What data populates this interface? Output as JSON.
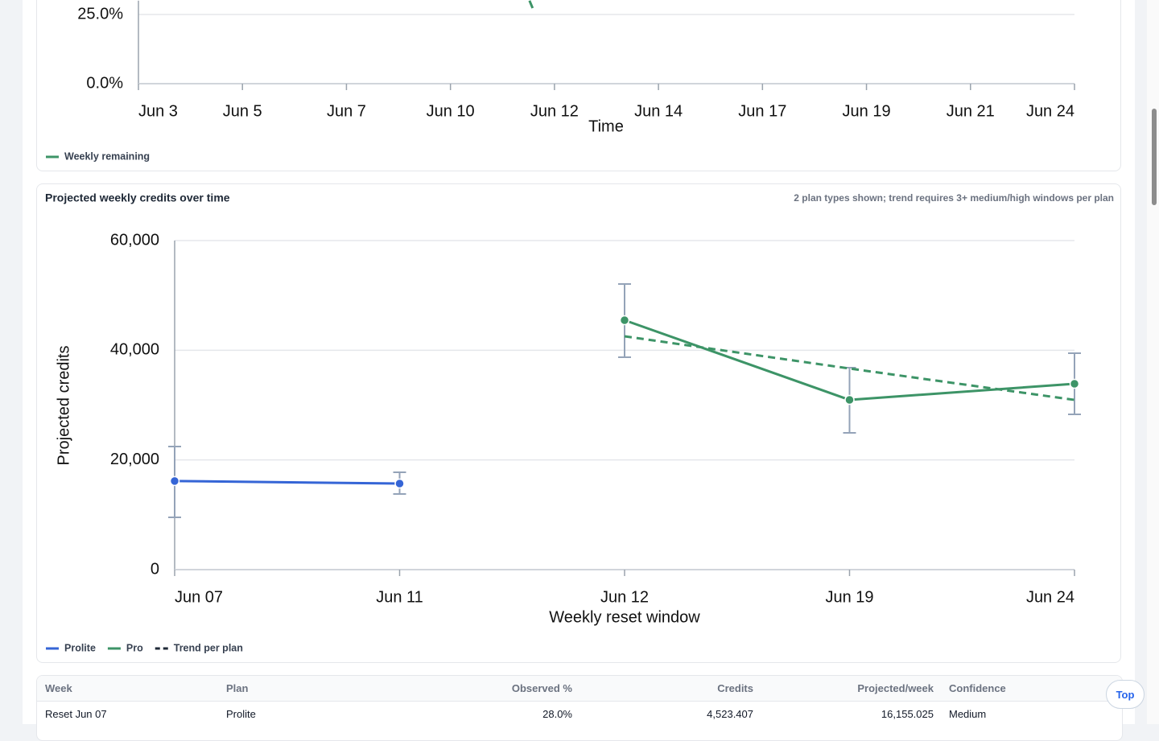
{
  "chart_data": [
    {
      "type": "line",
      "x_label": "Time",
      "xlim": [
        0,
        9
      ],
      "xticks": [
        {
          "value": 0,
          "label": "Jun 3"
        },
        {
          "value": 1,
          "label": "Jun 5"
        },
        {
          "value": 2,
          "label": "Jun 7"
        },
        {
          "value": 3,
          "label": "Jun 10"
        },
        {
          "value": 4,
          "label": "Jun 12"
        },
        {
          "value": 5,
          "label": "Jun 14"
        },
        {
          "value": 6,
          "label": "Jun 17"
        },
        {
          "value": 7,
          "label": "Jun 19"
        },
        {
          "value": 8,
          "label": "Jun 21"
        },
        {
          "value": 9,
          "label": "Jun 24"
        }
      ],
      "ylim": [
        0,
        30
      ],
      "yticks": [
        {
          "value": 0,
          "label": "0.0%"
        },
        {
          "value": 25,
          "label": "25.0%"
        }
      ],
      "grid": true,
      "series": [
        {
          "name": "Weekly remaining",
          "color": "#3d9467",
          "x": [
            3.76,
            3.79
          ],
          "values": [
            30,
            27.3
          ]
        }
      ]
    },
    {
      "type": "line",
      "title": "Projected weekly credits over time",
      "subtitle": "2 plan types shown; trend requires 3+ medium/high windows per plan",
      "x_label": "Weekly reset window",
      "y_label": "Projected credits",
      "categories": [
        "Jun 07",
        "Jun 11",
        "Jun 12",
        "Jun 19",
        "Jun 24"
      ],
      "ylim": [
        0,
        60000
      ],
      "yticks": [
        0,
        {
          "value": 20000,
          "label": "20,000"
        },
        {
          "value": 40000,
          "label": "40,000"
        },
        {
          "value": 60000,
          "label": "60,000"
        }
      ],
      "grid": true,
      "series": [
        {
          "name": "Prolite",
          "color": "#3565d6",
          "values": [
            16155,
            15700,
            null,
            null,
            null
          ],
          "low": [
            9535,
            13790,
            null,
            null,
            null
          ],
          "high": [
            22440,
            17750,
            null,
            null,
            null
          ]
        },
        {
          "name": "Pro",
          "color": "#3d9467",
          "values": [
            null,
            null,
            45480,
            30950,
            33890
          ],
          "low": [
            null,
            null,
            38730,
            24940,
            28310
          ],
          "high": [
            null,
            null,
            52080,
            36820,
            39460
          ]
        },
        {
          "name": "Trend per plan",
          "color": "#3d9467",
          "legend_color": "#1f2937",
          "dashed": true,
          "values": [
            null,
            null,
            42540,
            36670,
            30950
          ]
        }
      ]
    }
  ],
  "table": {
    "headers": [
      "Week",
      "Plan",
      "Observed %",
      "Credits",
      "Projected/week",
      "Confidence"
    ],
    "rows": [
      [
        "Reset Jun 07",
        "Prolite",
        "28.0%",
        "4,523.407",
        "16,155.025",
        "Medium"
      ]
    ]
  },
  "top_button": "Top"
}
